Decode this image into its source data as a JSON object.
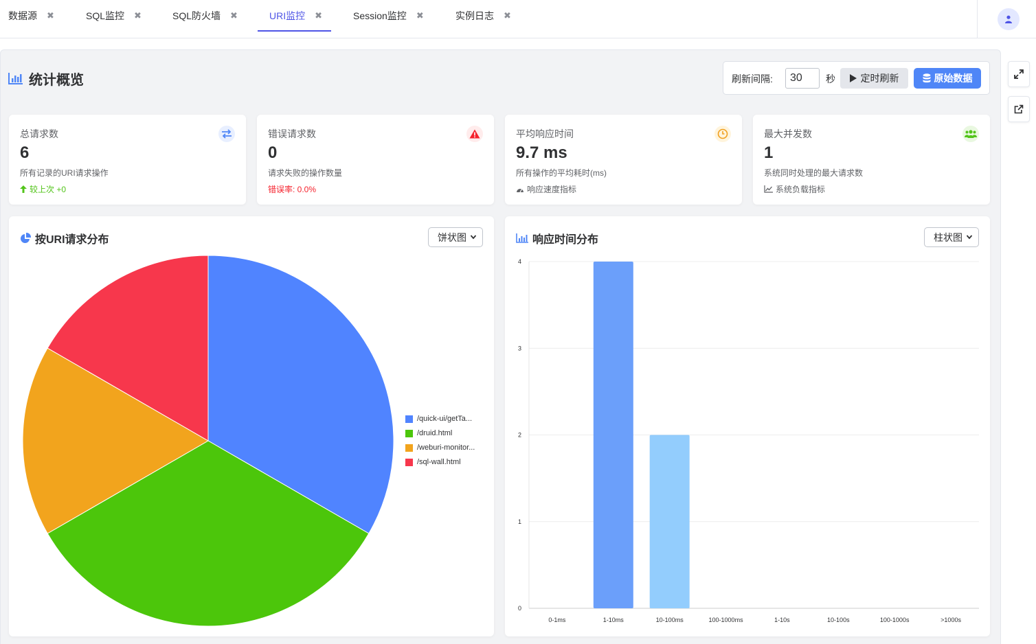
{
  "tabs": [
    {
      "label": "数据源",
      "active": false
    },
    {
      "label": "SQL监控",
      "active": false
    },
    {
      "label": "SQL防火墙",
      "active": false
    },
    {
      "label": "URI监控",
      "active": true
    },
    {
      "label": "Session监控",
      "active": false
    },
    {
      "label": "实例日志",
      "active": false
    }
  ],
  "tab_close_glyph": "✖",
  "header": {
    "title": "统计概览",
    "refresh_label": "刷新间隔:",
    "refresh_value": "30",
    "refresh_unit": "秒",
    "timer_button": "定时刷新",
    "raw_button": "原始数据"
  },
  "stats": [
    {
      "label": "总请求数",
      "value": "6",
      "desc": "所有记录的URI请求操作",
      "foot": "较上次 +0",
      "foot_color": "#52c41a",
      "icon": "exchange-icon",
      "icon_color": "#4f86f7"
    },
    {
      "label": "错误请求数",
      "value": "0",
      "desc": "请求失败的操作数量",
      "foot": "错误率: 0.0%",
      "foot_color": "#f5222d",
      "icon": "warning-icon",
      "icon_color": "#f5222d"
    },
    {
      "label": "平均响应时间",
      "value": "9.7 ms",
      "desc": "所有操作的平均耗时(ms)",
      "foot": "响应速度指标",
      "foot_color": "#606266",
      "icon": "clock-icon",
      "icon_color": "#f0a020"
    },
    {
      "label": "最大并发数",
      "value": "1",
      "desc": "系统同时处理的最大请求数",
      "foot": "系统负载指标",
      "foot_color": "#606266",
      "icon": "users-icon",
      "icon_color": "#52c41a"
    }
  ],
  "pie_panel": {
    "title": "按URI请求分布",
    "select_value": "饼状图"
  },
  "bar_panel": {
    "title": "响应时间分布",
    "select_value": "柱状图"
  },
  "chart_data": [
    {
      "type": "pie",
      "title": "按URI请求分布",
      "legend_position": "right",
      "slices": [
        {
          "label": "/quick-ui/getTa...",
          "value": 2,
          "color": "#5084ff"
        },
        {
          "label": "/druid.html",
          "value": 2,
          "color": "#4cc60b"
        },
        {
          "label": "/weburi-monitor...",
          "value": 1,
          "color": "#f2a41d"
        },
        {
          "label": "/sql-wall.html",
          "value": 1,
          "color": "#f7374c"
        }
      ]
    },
    {
      "type": "bar",
      "title": "响应时间分布",
      "categories": [
        "0-1ms",
        "1-10ms",
        "10-100ms",
        "100-1000ms",
        "1-10s",
        "10-100s",
        "100-1000s",
        ">1000s"
      ],
      "values": [
        0,
        4,
        2,
        0,
        0,
        0,
        0,
        0
      ],
      "colors": [
        "#6b9ffa",
        "#6b9ffa",
        "#93cdfd",
        "#6b9ffa",
        "#6b9ffa",
        "#6b9ffa",
        "#6b9ffa",
        "#6b9ffa"
      ],
      "ylim": [
        0,
        4
      ],
      "yticks": [
        "0",
        "1",
        "2",
        "3",
        "4"
      ],
      "grid": true
    }
  ]
}
